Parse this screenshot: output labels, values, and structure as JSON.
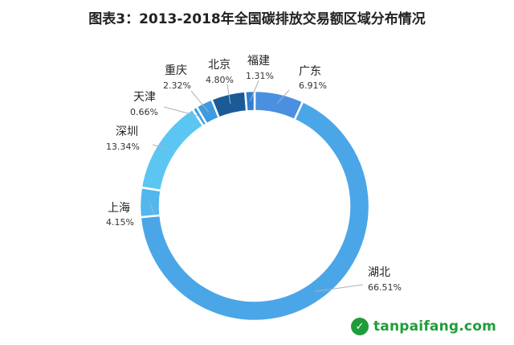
{
  "chart_data": {
    "type": "pie",
    "title": "图表3：2013-2018年全国碳排放交易额区域分布情况",
    "slices": [
      {
        "name": "广东",
        "value": 6.91,
        "label": "6.91%",
        "color": "#4a8fe0"
      },
      {
        "name": "湖北",
        "value": 66.51,
        "label": "66.51%",
        "color": "#4ba6e8"
      },
      {
        "name": "上海",
        "value": 4.15,
        "label": "4.15%",
        "color": "#52b7ee"
      },
      {
        "name": "深圳",
        "value": 13.34,
        "label": "13.34%",
        "color": "#5cc6f2"
      },
      {
        "name": "天津",
        "value": 0.66,
        "label": "0.66%",
        "color": "#3e9fe0"
      },
      {
        "name": "重庆",
        "value": 2.32,
        "label": "2.32%",
        "color": "#3d9be0"
      },
      {
        "name": "北京",
        "value": 4.8,
        "label": "4.80%",
        "color": "#1a5b97"
      },
      {
        "name": "福建",
        "value": 1.31,
        "label": "1.31%",
        "color": "#2f7fd6"
      }
    ]
  },
  "watermark": {
    "icon": "leaf-icon",
    "text": "tanpaifang.com"
  }
}
